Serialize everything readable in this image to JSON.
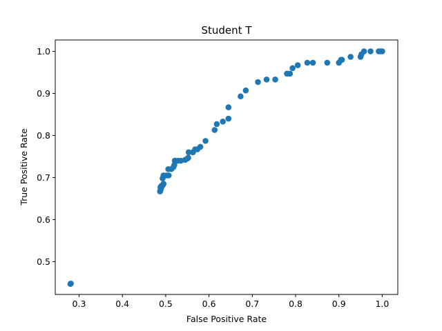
{
  "chart_data": {
    "type": "scatter",
    "title": "Student T",
    "xlabel": "False Positive Rate",
    "ylabel": "True Positive Rate",
    "xlim": [
      0.245,
      1.036
    ],
    "ylim": [
      0.422,
      1.027
    ],
    "xticks": [
      0.3,
      0.4,
      0.5,
      0.6,
      0.7,
      0.8,
      0.9,
      1.0
    ],
    "xtick_labels": [
      "0.3",
      "0.4",
      "0.5",
      "0.6",
      "0.7",
      "0.8",
      "0.9",
      "1.0"
    ],
    "yticks": [
      0.5,
      0.6,
      0.7,
      0.8,
      0.9,
      1.0
    ],
    "ytick_labels": [
      "0.5",
      "0.6",
      "0.7",
      "0.8",
      "0.9",
      "1.0"
    ],
    "grid": false,
    "marker_color": "#1f77b4",
    "points": [
      [
        0.28,
        0.447
      ],
      [
        0.281,
        0.448
      ],
      [
        0.487,
        0.667
      ],
      [
        0.488,
        0.67
      ],
      [
        0.489,
        0.673
      ],
      [
        0.488,
        0.677
      ],
      [
        0.49,
        0.68
      ],
      [
        0.492,
        0.68
      ],
      [
        0.494,
        0.683
      ],
      [
        0.495,
        0.685
      ],
      [
        0.493,
        0.698
      ],
      [
        0.495,
        0.705
      ],
      [
        0.502,
        0.705
      ],
      [
        0.507,
        0.705
      ],
      [
        0.506,
        0.72
      ],
      [
        0.513,
        0.72
      ],
      [
        0.518,
        0.725
      ],
      [
        0.52,
        0.73
      ],
      [
        0.521,
        0.74
      ],
      [
        0.528,
        0.74
      ],
      [
        0.535,
        0.74
      ],
      [
        0.545,
        0.742
      ],
      [
        0.55,
        0.745
      ],
      [
        0.552,
        0.747
      ],
      [
        0.553,
        0.76
      ],
      [
        0.563,
        0.76
      ],
      [
        0.568,
        0.767
      ],
      [
        0.573,
        0.767
      ],
      [
        0.58,
        0.773
      ],
      [
        0.592,
        0.787
      ],
      [
        0.613,
        0.813
      ],
      [
        0.618,
        0.827
      ],
      [
        0.632,
        0.833
      ],
      [
        0.645,
        0.84
      ],
      [
        0.645,
        0.867
      ],
      [
        0.673,
        0.893
      ],
      [
        0.685,
        0.907
      ],
      [
        0.713,
        0.927
      ],
      [
        0.733,
        0.933
      ],
      [
        0.753,
        0.933
      ],
      [
        0.78,
        0.947
      ],
      [
        0.787,
        0.947
      ],
      [
        0.793,
        0.96
      ],
      [
        0.805,
        0.967
      ],
      [
        0.827,
        0.973
      ],
      [
        0.84,
        0.973
      ],
      [
        0.873,
        0.973
      ],
      [
        0.9,
        0.973
      ],
      [
        0.905,
        0.98
      ],
      [
        0.907,
        0.98
      ],
      [
        0.927,
        0.987
      ],
      [
        0.95,
        0.987
      ],
      [
        0.952,
        0.993
      ],
      [
        0.958,
        1.0
      ],
      [
        0.973,
        1.0
      ],
      [
        0.992,
        1.0
      ],
      [
        0.997,
        1.0
      ],
      [
        1.0,
        1.0
      ]
    ]
  }
}
